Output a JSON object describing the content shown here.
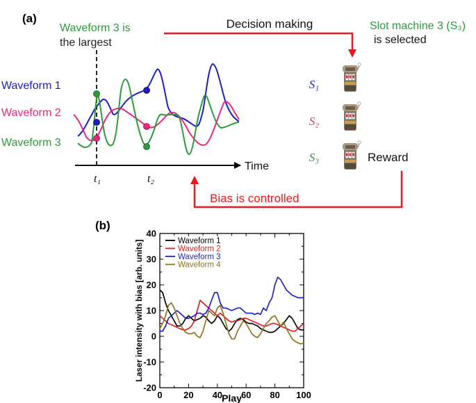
{
  "panel_a": {
    "panel_label": "(a)",
    "callout_line1": "Waveform 3 is",
    "callout_line2": "the largest",
    "decision_label": "Decision making",
    "slot_note_line1": "Slot machine 3 (S₃)",
    "slot_note_line2": "is selected",
    "waveform_labels": [
      "Waveform 1",
      "Waveform 2",
      "Waveform 3"
    ],
    "time_label": "Time",
    "t1_label": "t₁",
    "t2_label": "t₂",
    "slot_labels": [
      "S₁",
      "S₂",
      "S₃"
    ],
    "reward_label": "Reward",
    "bias_label": "Bias is controlled",
    "colors": {
      "waveform1": "#1c1cc8",
      "waveform2": "#e8287a",
      "waveform3": "#2c9a3c",
      "arrow": "#e8191e"
    }
  },
  "panel_b": {
    "panel_label": "(b)"
  },
  "chart_data": {
    "type": "line",
    "xlabel": "Play",
    "ylabel": "Laser intensity with bias [arb. units]",
    "xlim": [
      0,
      100
    ],
    "ylim": [
      -20,
      40
    ],
    "xticks": [
      0,
      20,
      40,
      60,
      80,
      100
    ],
    "yticks": [
      -20,
      -10,
      0,
      10,
      20,
      30,
      40
    ],
    "legend_position": "top-left",
    "grid": false,
    "series": [
      {
        "name": "Waveform 1",
        "color": "#000000",
        "x": [
          0,
          2,
          4,
          6,
          8,
          10,
          12,
          14,
          16,
          18,
          20,
          22,
          24,
          26,
          28,
          30,
          32,
          34,
          36,
          38,
          40,
          42,
          44,
          46,
          48,
          50,
          52,
          54,
          56,
          58,
          60,
          62,
          64,
          66,
          68,
          70,
          72,
          74,
          76,
          78,
          80,
          82,
          84,
          86,
          88,
          90,
          92,
          94,
          96,
          98,
          100
        ],
        "y": [
          18,
          17,
          13,
          10,
          8,
          6,
          4,
          4,
          5,
          7,
          8,
          7,
          6,
          6.5,
          7,
          8,
          7.5,
          6,
          5,
          6,
          8,
          7,
          5,
          3,
          2,
          3,
          5,
          6.5,
          7,
          6.5,
          5.5,
          5,
          5,
          4.5,
          4,
          3,
          2.5,
          2,
          1.5,
          1.5,
          2,
          3,
          4,
          5,
          6.5,
          8,
          7,
          5,
          3,
          2.5,
          2.5
        ]
      },
      {
        "name": "Waveform 2",
        "color": "#dd1f1f",
        "x": [
          0,
          2,
          4,
          6,
          8,
          10,
          12,
          14,
          16,
          18,
          20,
          22,
          24,
          26,
          28,
          30,
          32,
          34,
          36,
          38,
          40,
          42,
          44,
          46,
          48,
          50,
          52,
          54,
          56,
          58,
          60,
          62,
          64,
          66,
          68,
          70,
          72,
          74,
          76,
          78,
          80,
          82,
          84,
          86,
          88,
          90,
          92,
          94,
          96,
          98,
          100
        ],
        "y": [
          8,
          7,
          6,
          5,
          4.5,
          4,
          3.5,
          3,
          2.5,
          2.5,
          3,
          4,
          6,
          10,
          14,
          13,
          12,
          11,
          10,
          9,
          8,
          9,
          8,
          7,
          6,
          5.5,
          6,
          6,
          6.5,
          7,
          7,
          6.5,
          6,
          5.5,
          5,
          4.5,
          4,
          4,
          4.5,
          5,
          5,
          4.5,
          4,
          3.5,
          3,
          2.5,
          2,
          2,
          3,
          4,
          5
        ]
      },
      {
        "name": "Waveform 3",
        "color": "#1f23c8",
        "x": [
          0,
          2,
          4,
          6,
          8,
          10,
          12,
          14,
          16,
          18,
          20,
          22,
          24,
          26,
          28,
          30,
          32,
          34,
          36,
          38,
          40,
          42,
          44,
          46,
          48,
          50,
          52,
          54,
          56,
          58,
          60,
          62,
          64,
          66,
          68,
          70,
          72,
          74,
          76,
          78,
          80,
          82,
          84,
          86,
          88,
          90,
          92,
          94,
          96,
          98,
          100
        ],
        "y": [
          2,
          2,
          4,
          7,
          8,
          9,
          10,
          9,
          8,
          7,
          7,
          7.5,
          8,
          9,
          9,
          8.5,
          9,
          11,
          14,
          17,
          17,
          13,
          11,
          11,
          10.5,
          10,
          10.5,
          11,
          11,
          10,
          9,
          9,
          9,
          8.5,
          9,
          8.5,
          11,
          10,
          13,
          15,
          20,
          23,
          22,
          20,
          18,
          17,
          16,
          15.5,
          15,
          15,
          15
        ]
      },
      {
        "name": "Waveform 4",
        "color": "#8c7320",
        "x": [
          0,
          2,
          4,
          6,
          8,
          10,
          12,
          14,
          16,
          18,
          20,
          22,
          24,
          26,
          28,
          30,
          32,
          34,
          36,
          38,
          40,
          42,
          44,
          46,
          48,
          50,
          52,
          54,
          56,
          58,
          60,
          62,
          64,
          66,
          68,
          70,
          72,
          74,
          76,
          78,
          80,
          82,
          84,
          86,
          88,
          90,
          92,
          94,
          96,
          98,
          100
        ],
        "y": [
          3,
          5,
          8,
          12,
          13,
          11,
          8,
          5,
          3,
          1.5,
          1,
          1,
          1.5,
          0,
          -0.5,
          2,
          6,
          10,
          9,
          8,
          11,
          12,
          9,
          5,
          1,
          -1,
          -1,
          2,
          4,
          6,
          5,
          3,
          1,
          0,
          -0.5,
          1,
          3,
          5,
          6,
          7.5,
          8,
          6,
          4,
          5.5,
          3,
          1,
          -1,
          -2,
          -2.5,
          -3,
          -2.5
        ]
      }
    ]
  }
}
